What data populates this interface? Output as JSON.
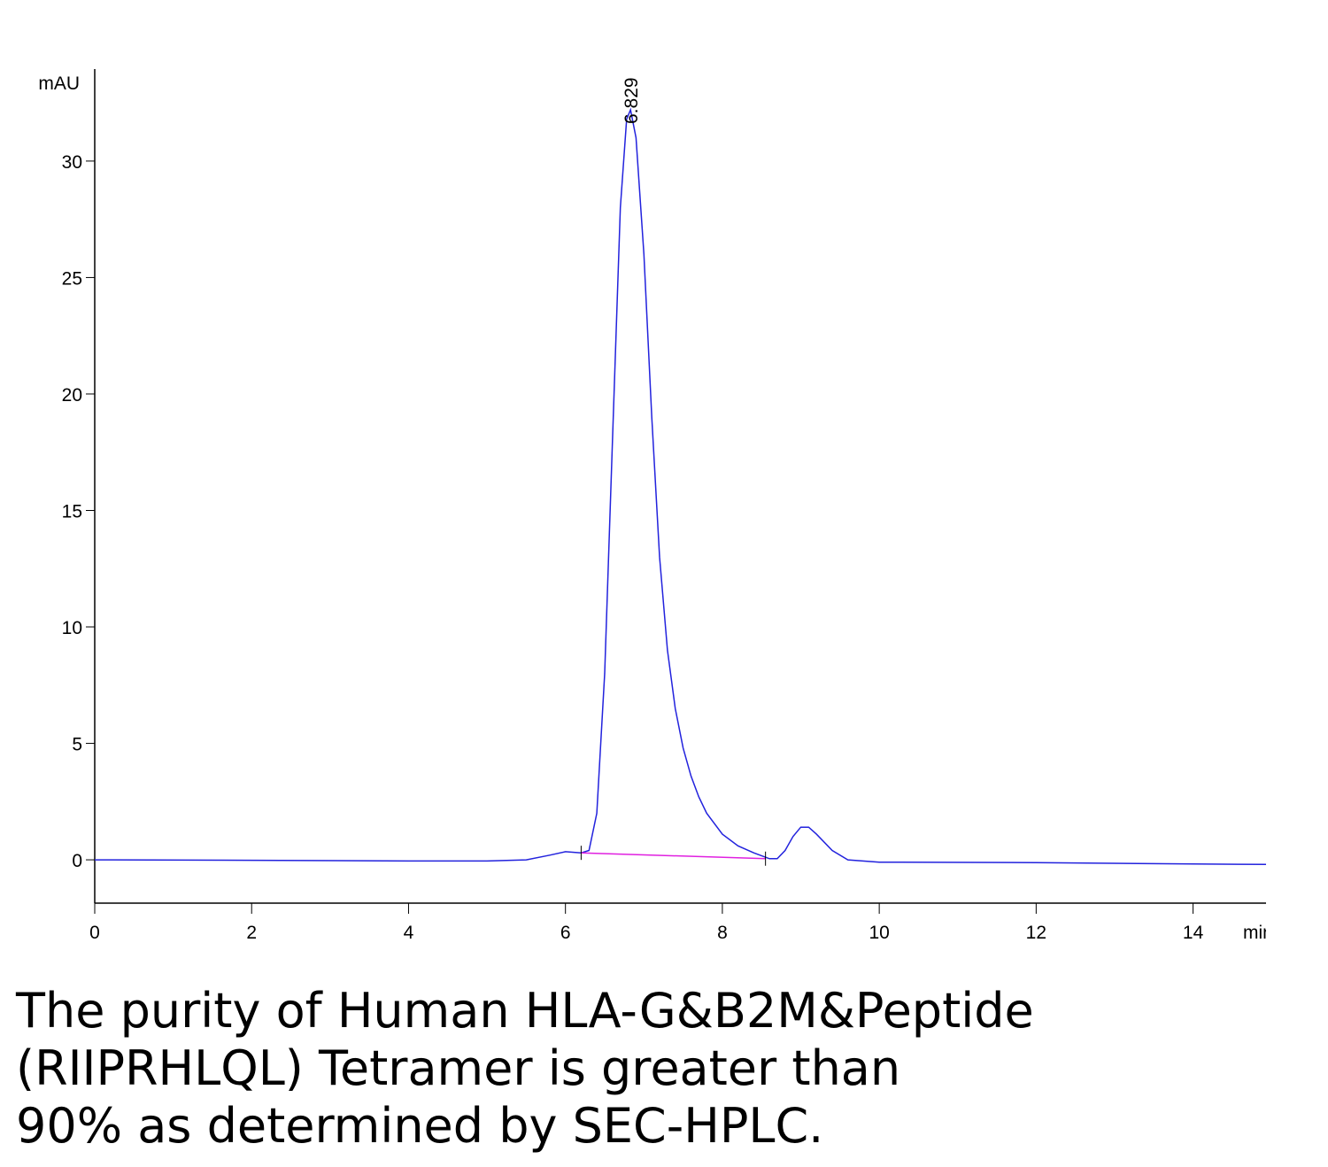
{
  "chart_data": {
    "type": "line",
    "y_label": "mAU",
    "x_label": "min",
    "xlim": [
      0,
      14.93
    ],
    "ylim": [
      -1.86,
      33.95
    ],
    "xticks": [
      0,
      2,
      4,
      6,
      8,
      10,
      12,
      14
    ],
    "yticks": [
      0,
      5,
      10,
      15,
      20,
      25,
      30
    ],
    "series": [
      {
        "color": "#2222dd",
        "x": [
          0,
          2,
          4,
          5,
          5.5,
          5.8,
          6.0,
          6.2,
          6.3,
          6.4,
          6.5,
          6.6,
          6.7,
          6.78,
          6.83,
          6.9,
          7.0,
          7.1,
          7.2,
          7.3,
          7.4,
          7.5,
          7.6,
          7.7,
          7.8,
          8.0,
          8.2,
          8.4,
          8.6,
          8.7,
          8.8,
          8.9,
          9.0,
          9.1,
          9.2,
          9.4,
          9.6,
          10,
          12,
          14,
          14.93
        ],
        "values": [
          0,
          -0.02,
          -0.05,
          -0.05,
          0.0,
          0.2,
          0.35,
          0.3,
          0.4,
          2,
          8,
          18,
          28,
          31.8,
          32.2,
          31,
          26,
          19,
          13,
          9,
          6.5,
          4.8,
          3.6,
          2.7,
          2.0,
          1.1,
          0.6,
          0.3,
          0.05,
          0.05,
          0.4,
          1.0,
          1.4,
          1.4,
          1.1,
          0.4,
          0.0,
          -0.1,
          -0.12,
          -0.18,
          -0.2
        ]
      }
    ],
    "baseline": {
      "color": "#e020e0",
      "x": [
        6.2,
        8.55
      ],
      "values": [
        0.3,
        0.05
      ]
    },
    "peak_label": 6.829
  },
  "caption": [
    "The purity of Human HLA-G&B2M&Peptide",
    "(RIIPRHLQL) Tetramer is greater than",
    "90% as determined by SEC-HPLC."
  ]
}
